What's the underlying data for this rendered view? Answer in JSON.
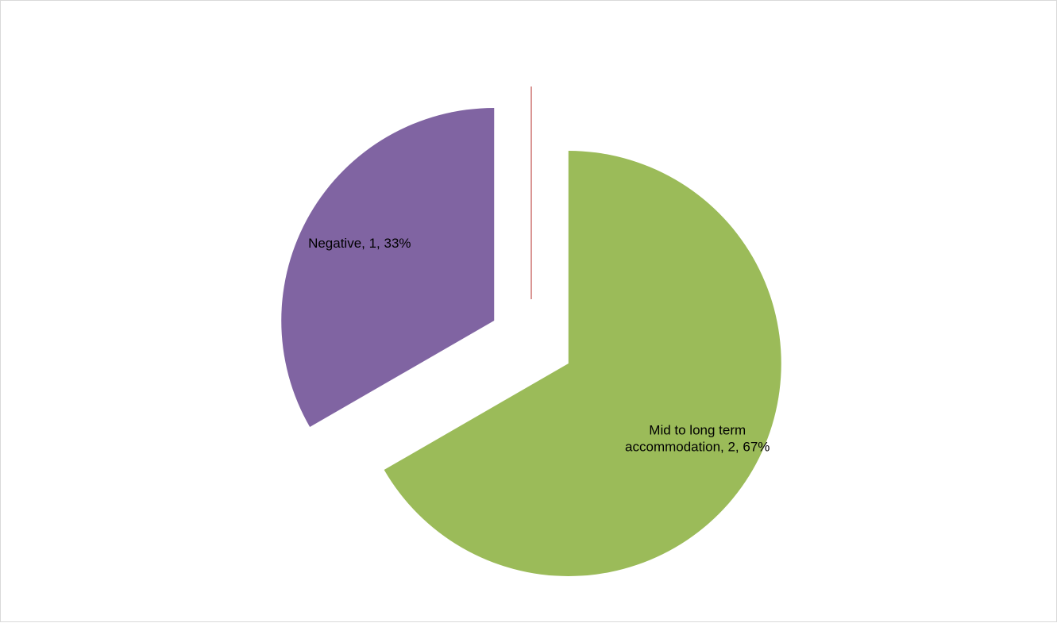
{
  "chart_data": {
    "type": "pie",
    "title": "",
    "slices": [
      {
        "name": "Mid to long term accommodation",
        "value": 2,
        "percent": 67,
        "color": "#9BBB59",
        "exploded": true
      },
      {
        "name": "Negative",
        "value": 1,
        "percent": 33,
        "color": "#8064A2",
        "exploded": true
      },
      {
        "name": "",
        "value": 0,
        "percent": 0,
        "color": "#C0504D",
        "exploded": true
      }
    ],
    "labels": [
      {
        "lines": [
          "Mid to long term",
          "accommodation, 2, 67%"
        ]
      },
      {
        "lines": [
          "Negative, 1, 33%"
        ]
      }
    ],
    "legend": "none"
  }
}
